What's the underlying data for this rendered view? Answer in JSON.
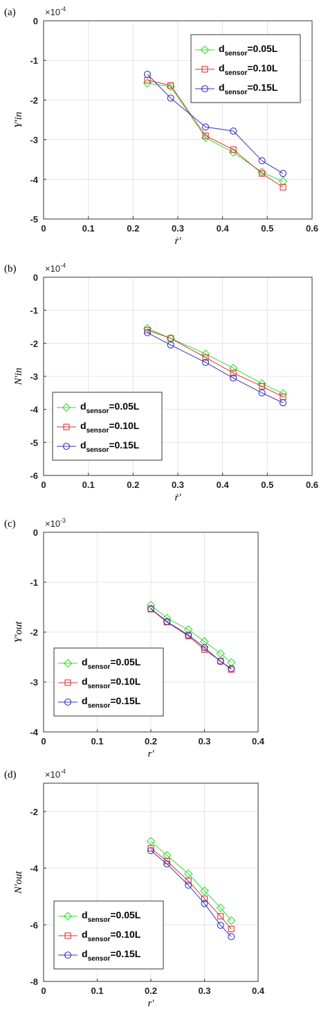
{
  "chart_data": [
    {
      "type": "line",
      "panel_label": "(a)",
      "ylabel": "Y′in",
      "xlabel": "ṙ′",
      "exponent_base": "×10",
      "exponent_power": "-4",
      "xlim": [
        0,
        0.6
      ],
      "ylim": [
        -5,
        0
      ],
      "xticks": [
        0,
        0.1,
        0.2,
        0.3,
        0.4,
        0.5,
        0.6
      ],
      "xtick_labels": [
        "0",
        "0.1",
        "0.2",
        "0.3",
        "0.4",
        "0.5",
        "0.6"
      ],
      "yticks": [
        -5,
        -4,
        -3,
        -2,
        -1,
        0
      ],
      "ytick_labels": [
        "-5",
        "-4",
        "-3",
        "-2",
        "-1",
        "0"
      ],
      "grid": true,
      "legend_position": "top-right",
      "x": [
        0.232,
        0.284,
        0.362,
        0.424,
        0.488,
        0.535
      ],
      "series": [
        {
          "name": "d",
          "name_sub": "sensor",
          "name_rest": "=0.05L",
          "marker": "diamond",
          "color": "#33dd33",
          "values": [
            -1.57,
            -1.66,
            -2.95,
            -3.32,
            -3.82,
            -4.05
          ]
        },
        {
          "name": "d",
          "name_sub": "sensor",
          "name_rest": "=0.10L",
          "marker": "square",
          "color": "#dd3333",
          "values": [
            -1.5,
            -1.63,
            -2.9,
            -3.25,
            -3.85,
            -4.2
          ]
        },
        {
          "name": "d",
          "name_sub": "sensor",
          "name_rest": "=0.15L",
          "marker": "circle",
          "color": "#3333bb",
          "values": [
            -1.35,
            -1.95,
            -2.68,
            -2.78,
            -3.53,
            -3.85
          ]
        }
      ]
    },
    {
      "type": "line",
      "panel_label": "(b)",
      "ylabel": "N′in",
      "xlabel": "ṙ′",
      "exponent_base": "×10",
      "exponent_power": "-4",
      "xlim": [
        0,
        0.6
      ],
      "ylim": [
        -6,
        0
      ],
      "xticks": [
        0,
        0.1,
        0.2,
        0.3,
        0.4,
        0.5,
        0.6
      ],
      "xtick_labels": [
        "0",
        "0.1",
        "0.2",
        "0.3",
        "0.4",
        "0.5",
        "0.6"
      ],
      "yticks": [
        -6,
        -5,
        -4,
        -3,
        -2,
        -1,
        0
      ],
      "ytick_labels": [
        "-6",
        "-5",
        "-4",
        "-3",
        "-2",
        "-1",
        "0"
      ],
      "grid": true,
      "legend_position": "bottom-left",
      "x": [
        0.232,
        0.284,
        0.362,
        0.424,
        0.488,
        0.535
      ],
      "series": [
        {
          "name": "d",
          "name_sub": "sensor",
          "name_rest": "=0.05L",
          "marker": "diamond",
          "color": "#33dd33",
          "values": [
            -1.55,
            -1.85,
            -2.32,
            -2.75,
            -3.22,
            -3.52
          ]
        },
        {
          "name": "d",
          "name_sub": "sensor",
          "name_rest": "=0.10L",
          "marker": "square",
          "color": "#dd3333",
          "values": [
            -1.6,
            -1.85,
            -2.43,
            -2.9,
            -3.3,
            -3.62
          ]
        },
        {
          "name": "d",
          "name_sub": "sensor",
          "name_rest": "=0.15L",
          "marker": "circle",
          "color": "#3333bb",
          "values": [
            -1.68,
            -2.05,
            -2.58,
            -3.05,
            -3.5,
            -3.8
          ]
        }
      ]
    },
    {
      "type": "line",
      "panel_label": "(c)",
      "ylabel": "Y′out",
      "xlabel": "r′",
      "exponent_base": "×10",
      "exponent_power": "-3",
      "xlim": [
        0,
        0.4
      ],
      "ylim": [
        -4,
        0
      ],
      "xticks": [
        0,
        0.1,
        0.2,
        0.3,
        0.4
      ],
      "xtick_labels": [
        "0",
        "0.1",
        "0.2",
        "0.3",
        "0.4"
      ],
      "yticks": [
        -4,
        -3,
        -2,
        -1,
        0
      ],
      "ytick_labels": [
        "-4",
        "-3",
        "-2",
        "-1",
        "0"
      ],
      "grid": true,
      "legend_position": "bottom-left",
      "x": [
        0.2,
        0.23,
        0.27,
        0.3,
        0.33,
        0.35
      ],
      "series": [
        {
          "name": "d",
          "name_sub": "sensor",
          "name_rest": "=0.05L",
          "marker": "diamond",
          "color": "#33dd33",
          "values": [
            -1.46,
            -1.72,
            -1.95,
            -2.19,
            -2.43,
            -2.61
          ]
        },
        {
          "name": "d",
          "name_sub": "sensor",
          "name_rest": "=0.10L",
          "marker": "square",
          "color": "#dd3333",
          "values": [
            -1.54,
            -1.8,
            -2.08,
            -2.35,
            -2.58,
            -2.75
          ]
        },
        {
          "name": "d",
          "name_sub": "sensor",
          "name_rest": "=0.15L",
          "marker": "circle",
          "color": "#3333bb",
          "values": [
            -1.53,
            -1.79,
            -2.06,
            -2.31,
            -2.59,
            -2.73
          ]
        }
      ]
    },
    {
      "type": "line",
      "panel_label": "(d)",
      "ylabel": "N′out",
      "xlabel": "r′",
      "exponent_base": "×10",
      "exponent_power": "-4",
      "xlim": [
        0,
        0.4
      ],
      "ylim": [
        -8,
        -1
      ],
      "xticks": [
        0,
        0.1,
        0.2,
        0.3,
        0.4
      ],
      "xtick_labels": [
        "0",
        "0.1",
        "0.2",
        "0.3",
        "0.4"
      ],
      "yticks": [
        -8,
        -6,
        -4,
        -2
      ],
      "ytick_labels": [
        "-8",
        "-6",
        "-4",
        "-2"
      ],
      "grid": true,
      "legend_position": "bottom-left",
      "x": [
        0.2,
        0.23,
        0.27,
        0.3,
        0.33,
        0.35
      ],
      "series": [
        {
          "name": "d",
          "name_sub": "sensor",
          "name_rest": "=0.05L",
          "marker": "diamond",
          "color": "#33dd33",
          "values": [
            -3.05,
            -3.55,
            -4.2,
            -4.8,
            -5.4,
            -5.85
          ]
        },
        {
          "name": "d",
          "name_sub": "sensor",
          "name_rest": "=0.10L",
          "marker": "square",
          "color": "#dd3333",
          "values": [
            -3.3,
            -3.75,
            -4.45,
            -5.08,
            -5.7,
            -6.15
          ]
        },
        {
          "name": "d",
          "name_sub": "sensor",
          "name_rest": "=0.15L",
          "marker": "circle",
          "color": "#3333bb",
          "values": [
            -3.38,
            -3.85,
            -4.6,
            -5.25,
            -6.02,
            -6.42
          ]
        }
      ]
    }
  ]
}
